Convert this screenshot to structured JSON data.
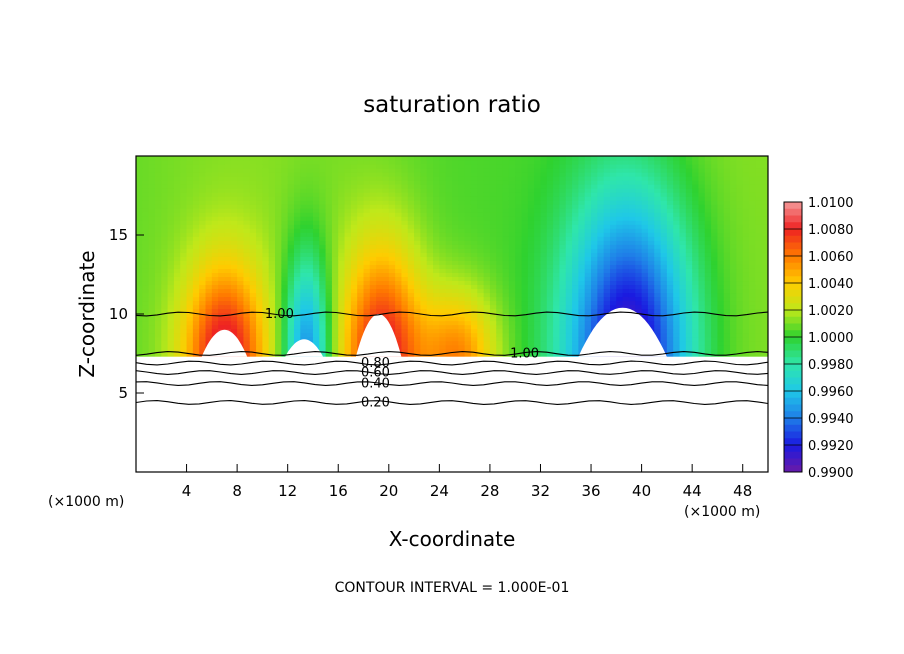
{
  "chart_data": {
    "type": "heatmap",
    "title": "saturation ratio",
    "xlabel": "X-coordinate",
    "ylabel": "Z-coordinate",
    "x_unit_label_left": "(×1000 m)",
    "x_unit_label_right": "(×1000 m)",
    "footer": "CONTOUR INTERVAL = 1.000E-01",
    "xlim": [
      0,
      50
    ],
    "ylim": [
      0,
      20
    ],
    "xticks": [
      4,
      8,
      12,
      16,
      20,
      24,
      28,
      32,
      36,
      40,
      44,
      48
    ],
    "yticks": [
      5,
      10,
      15
    ],
    "colorbar": {
      "range": [
        0.99,
        1.01
      ],
      "tick_labels": [
        "1.0100",
        "1.0080",
        "1.0060",
        "1.0040",
        "1.0020",
        "1.0000",
        "0.9980",
        "0.9960",
        "0.9940",
        "0.9920",
        "0.9900"
      ],
      "colors": [
        "#f59a9a",
        "#ee2222",
        "#ff7a00",
        "#ffcc00",
        "#bfe81a",
        "#2fd22f",
        "#2fe6aa",
        "#1fc8e8",
        "#1f7ee8",
        "#1a1ae0",
        "#6a1aa8"
      ]
    },
    "surface_height": 7.3,
    "features": [
      {
        "type": "moist",
        "x_center": 7,
        "width": 3.2,
        "peak": 1.0085,
        "top": 12.5
      },
      {
        "type": "dry",
        "x_center": 13.5,
        "width": 1.8,
        "peak": 0.994,
        "top": 13
      },
      {
        "type": "moist",
        "x_center": 19.5,
        "width": 3.2,
        "peak": 1.0085,
        "top": 13.5
      },
      {
        "type": "moist",
        "x_center": 25.5,
        "width": 3.0,
        "peak": 1.006,
        "top": 11
      },
      {
        "type": "dry",
        "x_center": 39,
        "width": 5.0,
        "peak": 0.9905,
        "top": 16.5
      }
    ],
    "contours": [
      {
        "label": "0.20",
        "value": 0.2,
        "z": 4.4,
        "label_x": 17.8
      },
      {
        "label": "0.40",
        "value": 0.4,
        "z": 5.6,
        "label_x": 17.8
      },
      {
        "label": "0.60",
        "value": 0.6,
        "z": 6.3,
        "label_x": 17.8
      },
      {
        "label": "0.80",
        "value": 0.8,
        "z": 6.9,
        "label_x": 17.8
      },
      {
        "label": "1.00",
        "value": 1.0,
        "z": 10.0,
        "label_x": 10.2
      },
      {
        "label": "1.00",
        "value": 1.0,
        "z": 7.5,
        "label_x": 29.6
      }
    ],
    "terrain_white_regions": [
      {
        "x_center": 7,
        "width": 1.8,
        "top": 9.0
      },
      {
        "x_center": 13.3,
        "width": 1.5,
        "top": 8.4
      },
      {
        "x_center": 19.2,
        "width": 1.8,
        "top": 10.0
      },
      {
        "x_center": 38.5,
        "width": 3.5,
        "top": 10.4
      }
    ]
  }
}
